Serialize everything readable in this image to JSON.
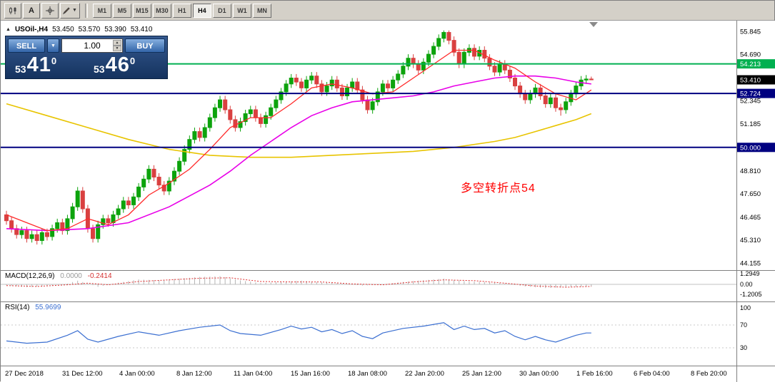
{
  "toolbar": {
    "text_tool_label": "A",
    "dropdown_caret": "▼",
    "timeframes": [
      "M1",
      "M5",
      "M15",
      "M30",
      "H1",
      "H4",
      "D1",
      "W1",
      "MN"
    ],
    "active_timeframe": "H4"
  },
  "symbol_line": {
    "marker": "▲",
    "symbol": "USOil-,H4",
    "open": "53.450",
    "high": "53.570",
    "low": "53.390",
    "close": "53.410"
  },
  "trade_panel": {
    "sell_label": "SELL",
    "buy_label": "BUY",
    "volume": "1.00",
    "caret": "▼",
    "spin_up": "▲",
    "spin_down": "▼",
    "bid_prefix": "53",
    "bid_big": "41",
    "bid_sup": "0",
    "ask_prefix": "53",
    "ask_big": "46",
    "ask_sup": "0"
  },
  "annotation": {
    "text": "多空转折点54",
    "color": "#ff0000"
  },
  "price_axis": {
    "ticks": [
      {
        "label": "55.845",
        "value": 55.845
      },
      {
        "label": "54.690",
        "value": 54.69
      },
      {
        "label": "52.345",
        "value": 52.345
      },
      {
        "label": "51.185",
        "value": 51.185
      },
      {
        "label": "48.810",
        "value": 48.81
      },
      {
        "label": "47.650",
        "value": 47.65
      },
      {
        "label": "46.465",
        "value": 46.465
      },
      {
        "label": "45.310",
        "value": 45.31
      },
      {
        "label": "44.155",
        "value": 44.155
      }
    ],
    "tags": [
      {
        "label": "54.213",
        "value": 54.213,
        "bg": "#00b050"
      },
      {
        "label": "53.410",
        "value": 53.41,
        "bg": "#000000"
      },
      {
        "label": "52.724",
        "value": 52.724,
        "bg": "#000080"
      },
      {
        "label": "50.000",
        "value": 50.0,
        "bg": "#000080"
      }
    ]
  },
  "hlines": [
    {
      "value": 54.213,
      "color": "#00b050",
      "width": 2
    },
    {
      "value": 52.724,
      "color": "#000080",
      "width": 2
    },
    {
      "value": 50.0,
      "color": "#000080",
      "width": 2
    }
  ],
  "chart_data": {
    "type": "candlestick",
    "symbol": "USOil-",
    "timeframe": "H4",
    "y_range": [
      43.95,
      56.25
    ],
    "x_labels": [
      "27 Dec 2018",
      "31 Dec 12:00",
      "4 Jan 00:00",
      "8 Jan 12:00",
      "11 Jan 04:00",
      "15 Jan 16:00",
      "18 Jan 08:00",
      "22 Jan 20:00",
      "25 Jan 12:00",
      "30 Jan 00:00",
      "1 Feb 16:00",
      "6 Feb 04:00",
      "8 Feb 20:00"
    ],
    "ohlc": [
      [
        46.6,
        46.8,
        46.1,
        46.3
      ],
      [
        46.3,
        46.5,
        45.7,
        45.9
      ],
      [
        45.9,
        46.1,
        45.4,
        45.6
      ],
      [
        45.6,
        46.0,
        45.4,
        45.8
      ],
      [
        45.8,
        46.0,
        45.2,
        45.4
      ],
      [
        45.4,
        45.8,
        45.2,
        45.6
      ],
      [
        45.6,
        45.8,
        45.1,
        45.3
      ],
      [
        45.3,
        45.9,
        45.1,
        45.7
      ],
      [
        45.7,
        45.9,
        45.3,
        45.5
      ],
      [
        45.5,
        46.1,
        45.3,
        45.9
      ],
      [
        45.9,
        46.4,
        45.7,
        46.2
      ],
      [
        46.2,
        46.4,
        45.6,
        45.8
      ],
      [
        45.8,
        46.6,
        45.6,
        46.4
      ],
      [
        46.4,
        47.2,
        46.2,
        47.0
      ],
      [
        47.0,
        48.0,
        46.8,
        47.8
      ],
      [
        47.8,
        48.0,
        46.7,
        46.9
      ],
      [
        46.9,
        47.1,
        45.7,
        45.9
      ],
      [
        45.9,
        46.1,
        45.2,
        45.4
      ],
      [
        45.4,
        46.3,
        45.2,
        46.1
      ],
      [
        46.1,
        46.6,
        45.9,
        46.4
      ],
      [
        46.4,
        46.6,
        46.0,
        46.2
      ],
      [
        46.2,
        46.8,
        46.0,
        46.6
      ],
      [
        46.6,
        47.1,
        46.4,
        46.9
      ],
      [
        46.9,
        47.5,
        46.7,
        47.3
      ],
      [
        47.3,
        47.5,
        46.9,
        47.1
      ],
      [
        47.1,
        47.7,
        46.9,
        47.5
      ],
      [
        47.5,
        48.2,
        47.3,
        48.0
      ],
      [
        48.0,
        48.6,
        47.8,
        48.4
      ],
      [
        48.4,
        49.1,
        48.2,
        48.9
      ],
      [
        48.9,
        49.1,
        48.3,
        48.5
      ],
      [
        48.5,
        48.7,
        47.9,
        48.1
      ],
      [
        48.1,
        48.3,
        47.6,
        47.8
      ],
      [
        47.8,
        48.5,
        47.6,
        48.3
      ],
      [
        48.3,
        49.0,
        48.1,
        48.8
      ],
      [
        48.8,
        49.5,
        48.6,
        49.3
      ],
      [
        49.3,
        50.1,
        49.1,
        49.9
      ],
      [
        49.9,
        50.6,
        49.7,
        50.4
      ],
      [
        50.4,
        51.0,
        50.2,
        50.8
      ],
      [
        50.8,
        51.0,
        50.3,
        50.5
      ],
      [
        50.5,
        51.2,
        50.3,
        51.0
      ],
      [
        51.0,
        51.7,
        50.8,
        51.5
      ],
      [
        51.5,
        52.2,
        51.3,
        52.0
      ],
      [
        52.0,
        52.6,
        51.8,
        52.4
      ],
      [
        52.4,
        52.6,
        51.7,
        51.9
      ],
      [
        51.9,
        52.1,
        51.2,
        51.4
      ],
      [
        51.4,
        51.6,
        50.8,
        51.0
      ],
      [
        51.0,
        51.5,
        50.8,
        51.3
      ],
      [
        51.3,
        51.9,
        51.1,
        51.7
      ],
      [
        51.7,
        52.1,
        51.5,
        51.9
      ],
      [
        51.9,
        52.1,
        51.3,
        51.5
      ],
      [
        51.5,
        51.7,
        51.0,
        51.2
      ],
      [
        51.2,
        51.8,
        51.0,
        51.6
      ],
      [
        51.6,
        52.2,
        51.4,
        52.0
      ],
      [
        52.0,
        52.6,
        51.8,
        52.4
      ],
      [
        52.4,
        53.0,
        52.2,
        52.8
      ],
      [
        52.8,
        53.4,
        52.6,
        53.2
      ],
      [
        53.2,
        53.7,
        53.0,
        53.5
      ],
      [
        53.5,
        53.7,
        53.1,
        53.3
      ],
      [
        53.3,
        53.5,
        52.8,
        53.0
      ],
      [
        53.0,
        53.6,
        52.8,
        53.4
      ],
      [
        53.4,
        53.8,
        53.2,
        53.6
      ],
      [
        53.6,
        53.8,
        53.0,
        53.2
      ],
      [
        53.2,
        53.4,
        52.6,
        52.8
      ],
      [
        52.8,
        53.3,
        52.6,
        53.1
      ],
      [
        53.1,
        53.6,
        52.9,
        53.4
      ],
      [
        53.4,
        53.6,
        52.8,
        53.0
      ],
      [
        53.0,
        53.2,
        52.4,
        52.6
      ],
      [
        52.6,
        53.2,
        52.4,
        53.0
      ],
      [
        53.0,
        53.5,
        52.8,
        53.3
      ],
      [
        53.3,
        53.5,
        52.7,
        52.9
      ],
      [
        52.9,
        53.1,
        52.2,
        52.4
      ],
      [
        52.4,
        52.6,
        51.7,
        51.9
      ],
      [
        51.9,
        52.5,
        51.7,
        52.3
      ],
      [
        52.3,
        53.0,
        52.1,
        52.8
      ],
      [
        52.8,
        53.4,
        52.6,
        53.2
      ],
      [
        53.2,
        53.4,
        52.8,
        53.0
      ],
      [
        53.0,
        53.6,
        52.8,
        53.4
      ],
      [
        53.4,
        53.9,
        53.2,
        53.7
      ],
      [
        53.7,
        54.3,
        53.5,
        54.1
      ],
      [
        54.1,
        54.7,
        53.9,
        54.5
      ],
      [
        54.5,
        54.7,
        54.0,
        54.2
      ],
      [
        54.2,
        54.4,
        53.7,
        53.9
      ],
      [
        53.9,
        54.5,
        53.7,
        54.3
      ],
      [
        54.3,
        54.9,
        54.1,
        54.7
      ],
      [
        54.7,
        55.3,
        54.5,
        55.1
      ],
      [
        55.1,
        55.7,
        54.9,
        55.5
      ],
      [
        55.5,
        55.9,
        55.3,
        55.8
      ],
      [
        55.8,
        55.9,
        55.2,
        55.4
      ],
      [
        55.4,
        55.6,
        54.6,
        54.8
      ],
      [
        54.8,
        55.0,
        54.0,
        54.2
      ],
      [
        54.2,
        55.0,
        54.0,
        54.8
      ],
      [
        54.8,
        55.2,
        54.6,
        55.0
      ],
      [
        55.0,
        55.2,
        54.4,
        54.6
      ],
      [
        54.6,
        55.1,
        54.4,
        54.9
      ],
      [
        54.9,
        55.1,
        54.3,
        54.5
      ],
      [
        54.5,
        54.7,
        53.9,
        54.1
      ],
      [
        54.1,
        54.3,
        53.6,
        53.8
      ],
      [
        53.8,
        54.4,
        53.6,
        54.2
      ],
      [
        54.2,
        54.4,
        53.7,
        53.9
      ],
      [
        53.9,
        54.1,
        53.3,
        53.5
      ],
      [
        53.5,
        53.7,
        52.9,
        53.1
      ],
      [
        53.1,
        53.3,
        52.5,
        52.7
      ],
      [
        52.7,
        52.9,
        52.2,
        52.4
      ],
      [
        52.4,
        52.9,
        52.2,
        52.7
      ],
      [
        52.7,
        53.2,
        52.5,
        53.0
      ],
      [
        53.0,
        53.2,
        52.4,
        52.6
      ],
      [
        52.6,
        52.8,
        52.0,
        52.2
      ],
      [
        52.2,
        52.7,
        52.0,
        52.5
      ],
      [
        52.5,
        52.7,
        51.8,
        52.0
      ],
      [
        52.0,
        52.2,
        51.6,
        51.9
      ],
      [
        51.9,
        52.5,
        51.7,
        52.3
      ],
      [
        52.3,
        52.9,
        52.1,
        52.7
      ],
      [
        52.7,
        53.3,
        52.5,
        53.1
      ],
      [
        53.1,
        53.6,
        52.9,
        53.4
      ],
      [
        53.4,
        53.65,
        53.2,
        53.45
      ],
      [
        53.45,
        53.57,
        53.39,
        53.41
      ]
    ],
    "ma_red": [
      [
        0,
        46.6
      ],
      [
        4,
        46.2
      ],
      [
        8,
        45.8
      ],
      [
        12,
        45.9
      ],
      [
        16,
        46.4
      ],
      [
        20,
        46.1
      ],
      [
        24,
        46.6
      ],
      [
        28,
        47.6
      ],
      [
        32,
        48.2
      ],
      [
        36,
        48.9
      ],
      [
        40,
        49.9
      ],
      [
        44,
        51.0
      ],
      [
        48,
        51.5
      ],
      [
        52,
        51.5
      ],
      [
        56,
        52.2
      ],
      [
        60,
        53.0
      ],
      [
        64,
        53.2
      ],
      [
        68,
        53.0
      ],
      [
        72,
        52.7
      ],
      [
        76,
        52.8
      ],
      [
        80,
        53.5
      ],
      [
        84,
        54.2
      ],
      [
        88,
        54.9
      ],
      [
        92,
        54.9
      ],
      [
        96,
        54.4
      ],
      [
        100,
        54.0
      ],
      [
        104,
        53.3
      ],
      [
        108,
        52.7
      ],
      [
        112,
        52.4
      ],
      [
        115,
        52.9
      ]
    ],
    "ma_magenta": [
      [
        0,
        45.9
      ],
      [
        8,
        45.8
      ],
      [
        16,
        45.9
      ],
      [
        24,
        46.2
      ],
      [
        32,
        47.0
      ],
      [
        40,
        48.1
      ],
      [
        44,
        48.8
      ],
      [
        48,
        49.6
      ],
      [
        52,
        50.3
      ],
      [
        56,
        51.0
      ],
      [
        60,
        51.6
      ],
      [
        64,
        52.0
      ],
      [
        68,
        52.3
      ],
      [
        72,
        52.4
      ],
      [
        76,
        52.5
      ],
      [
        80,
        52.6
      ],
      [
        84,
        52.8
      ],
      [
        88,
        53.1
      ],
      [
        92,
        53.3
      ],
      [
        96,
        53.5
      ],
      [
        100,
        53.6
      ],
      [
        104,
        53.6
      ],
      [
        108,
        53.5
      ],
      [
        112,
        53.3
      ],
      [
        115,
        53.2
      ]
    ],
    "ma_yellow": [
      [
        0,
        52.2
      ],
      [
        8,
        51.6
      ],
      [
        16,
        51.0
      ],
      [
        24,
        50.4
      ],
      [
        32,
        49.9
      ],
      [
        40,
        49.6
      ],
      [
        48,
        49.5
      ],
      [
        56,
        49.5
      ],
      [
        64,
        49.6
      ],
      [
        72,
        49.7
      ],
      [
        80,
        49.8
      ],
      [
        88,
        50.0
      ],
      [
        96,
        50.3
      ],
      [
        100,
        50.5
      ],
      [
        104,
        50.8
      ],
      [
        108,
        51.1
      ],
      [
        112,
        51.4
      ],
      [
        115,
        51.7
      ]
    ],
    "macd": {
      "name": "MACD(12,26,9)",
      "value_main": "0.0000",
      "value_signal": "-0.2414",
      "scale_labels": [
        "1.2949",
        "0.00",
        "-1.2005"
      ],
      "scale_values": [
        1.2949,
        0,
        -1.2005
      ],
      "hist": [
        [
          0,
          -0.1
        ],
        [
          4,
          -0.35
        ],
        [
          8,
          -0.2
        ],
        [
          12,
          0.1
        ],
        [
          14,
          0.45
        ],
        [
          16,
          0.1
        ],
        [
          18,
          -0.3
        ],
        [
          22,
          0.2
        ],
        [
          26,
          0.6
        ],
        [
          30,
          0.5
        ],
        [
          34,
          0.7
        ],
        [
          38,
          0.9
        ],
        [
          42,
          1.0
        ],
        [
          46,
          0.5
        ],
        [
          50,
          0.15
        ],
        [
          54,
          0.3
        ],
        [
          58,
          0.45
        ],
        [
          62,
          0.25
        ],
        [
          66,
          0.1
        ],
        [
          70,
          -0.15
        ],
        [
          74,
          0.0
        ],
        [
          78,
          0.3
        ],
        [
          82,
          0.5
        ],
        [
          86,
          0.7
        ],
        [
          90,
          0.4
        ],
        [
          94,
          0.3
        ],
        [
          98,
          0.1
        ],
        [
          102,
          -0.25
        ],
        [
          106,
          -0.45
        ],
        [
          110,
          -0.35
        ],
        [
          115,
          -0.24
        ]
      ],
      "signal": [
        [
          0,
          -0.15
        ],
        [
          6,
          -0.25
        ],
        [
          12,
          -0.05
        ],
        [
          16,
          0.15
        ],
        [
          20,
          -0.05
        ],
        [
          26,
          0.35
        ],
        [
          32,
          0.55
        ],
        [
          38,
          0.75
        ],
        [
          44,
          0.8
        ],
        [
          50,
          0.35
        ],
        [
          56,
          0.3
        ],
        [
          62,
          0.3
        ],
        [
          68,
          0.05
        ],
        [
          74,
          -0.05
        ],
        [
          80,
          0.3
        ],
        [
          86,
          0.55
        ],
        [
          92,
          0.45
        ],
        [
          98,
          0.15
        ],
        [
          104,
          -0.2
        ],
        [
          110,
          -0.35
        ],
        [
          115,
          -0.25
        ]
      ]
    },
    "rsi": {
      "name": "RSI(14)",
      "value": "55.9699",
      "levels": [
        100,
        70,
        30
      ],
      "points": [
        [
          0,
          42
        ],
        [
          4,
          38
        ],
        [
          8,
          40
        ],
        [
          12,
          52
        ],
        [
          14,
          60
        ],
        [
          16,
          45
        ],
        [
          18,
          40
        ],
        [
          22,
          50
        ],
        [
          26,
          58
        ],
        [
          30,
          52
        ],
        [
          34,
          60
        ],
        [
          38,
          66
        ],
        [
          42,
          70
        ],
        [
          44,
          60
        ],
        [
          46,
          55
        ],
        [
          50,
          52
        ],
        [
          54,
          62
        ],
        [
          56,
          68
        ],
        [
          58,
          63
        ],
        [
          60,
          66
        ],
        [
          62,
          58
        ],
        [
          64,
          62
        ],
        [
          66,
          55
        ],
        [
          68,
          60
        ],
        [
          70,
          50
        ],
        [
          72,
          46
        ],
        [
          74,
          56
        ],
        [
          78,
          64
        ],
        [
          82,
          68
        ],
        [
          86,
          74
        ],
        [
          88,
          62
        ],
        [
          90,
          68
        ],
        [
          92,
          62
        ],
        [
          94,
          64
        ],
        [
          96,
          56
        ],
        [
          98,
          60
        ],
        [
          100,
          50
        ],
        [
          102,
          44
        ],
        [
          104,
          50
        ],
        [
          106,
          44
        ],
        [
          108,
          40
        ],
        [
          110,
          46
        ],
        [
          112,
          52
        ],
        [
          114,
          56
        ],
        [
          115,
          56
        ]
      ]
    },
    "colors": {
      "candle_up": "#0ca30c",
      "candle_down": "#d94040",
      "ma_red": "#ff2a2a",
      "ma_magenta": "#e800e8",
      "ma_yellow": "#e8c400",
      "macd_hist": "#b4b4b4",
      "macd_signal": "#e03030",
      "rsi_line": "#3b6fd1",
      "hline_green": "#00b050",
      "hline_navy": "#000080"
    }
  }
}
